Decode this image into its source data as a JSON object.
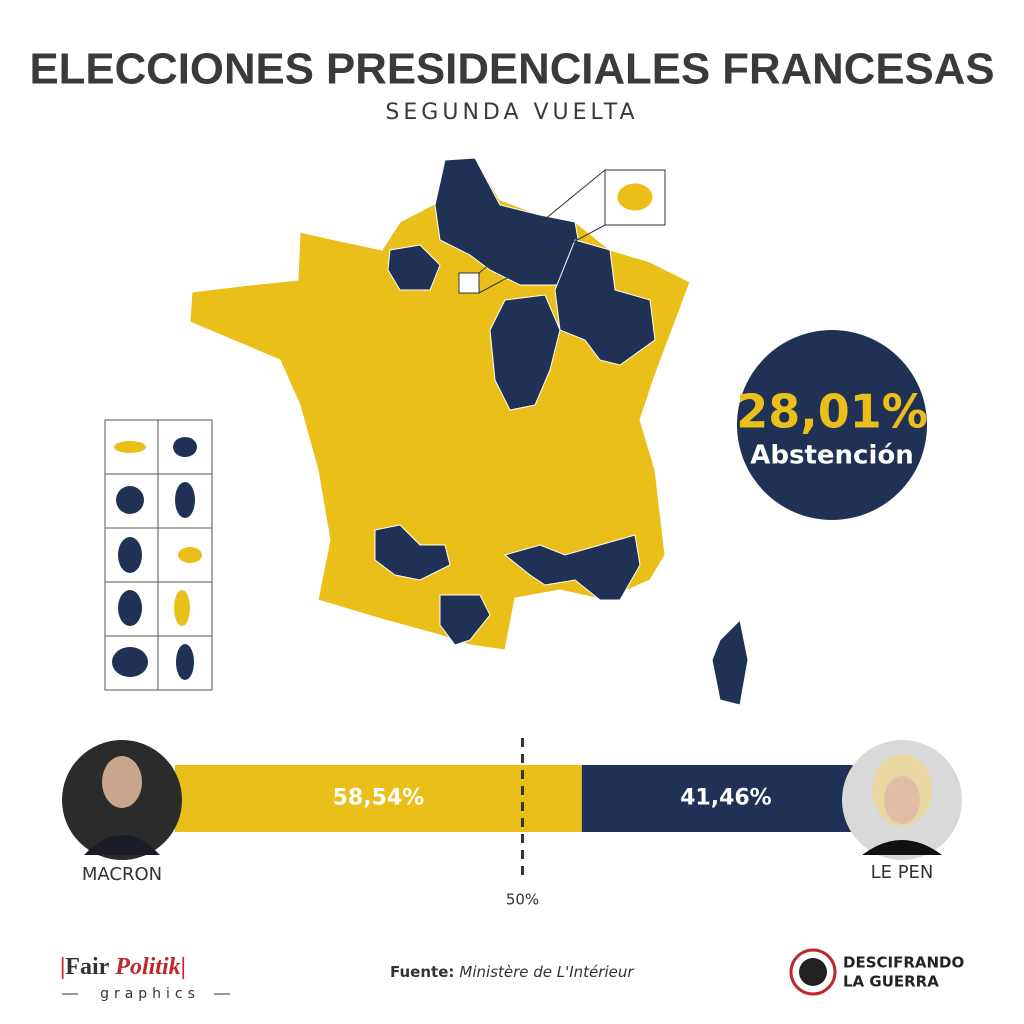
{
  "header": {
    "title": "ELECCIONES PRESIDENCIALES FRANCESAS",
    "subtitle": "SEGUNDA VUELTA"
  },
  "abstention": {
    "value": 28.01,
    "label": "28,01%",
    "caption": "Abstención"
  },
  "result_bar": {
    "candidates": [
      {
        "name": "MACRON",
        "value": 58.54,
        "label": "58,54%",
        "color": "#ebbf1a"
      },
      {
        "name": "LE PEN",
        "value": 41.46,
        "label": "41,46%",
        "color": "#1f3154"
      }
    ],
    "midpoint": {
      "value": 50,
      "label": "50%"
    }
  },
  "footer": {
    "brand": "Fair",
    "brand_accent": "Politik",
    "brand_sub": "graphics",
    "source_label": "Fuente:",
    "source": "Ministère de L'Intérieur",
    "partner_line1": "DESCIFRANDO",
    "partner_line2": "LA GUERRA"
  }
}
